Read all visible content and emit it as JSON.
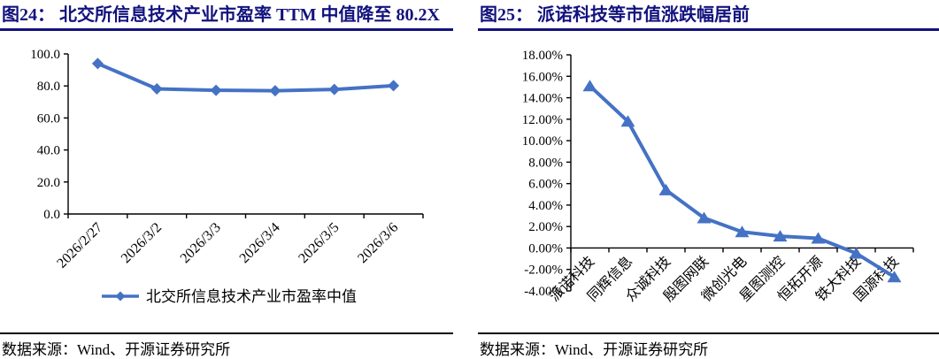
{
  "panels": [
    {
      "title": "图24： 北交所信息技术产业市盈率 TTM 中值降至 80.2X",
      "source": "数据来源：Wind、开源证券研究所"
    },
    {
      "title": "图25： 派诺科技等市值涨跌幅居前",
      "source": "数据来源：Wind、开源证券研究所"
    }
  ],
  "colors": {
    "series_blue": "#4472C4",
    "title_navy": "#12127e",
    "axis_black": "#000000"
  },
  "chart_data": [
    {
      "type": "line",
      "title": "北交所信息技术产业市盈率 TTM 中值降至 80.2X",
      "xlabel": "",
      "ylabel": "",
      "categories": [
        "2026/2/27",
        "2026/3/2",
        "2026/3/3",
        "2026/3/4",
        "2026/3/5",
        "2026/3/6"
      ],
      "series": [
        {
          "name": "北交所信息技术产业市盈率中值",
          "values": [
            94.0,
            78.2,
            77.3,
            77.0,
            77.8,
            80.2
          ]
        }
      ],
      "ylim": [
        0,
        100
      ],
      "ytick_step": 20,
      "ytick_format": "fixed1",
      "marker": "diamond",
      "line_color": "#4472C4",
      "grid": false,
      "legend_position": "bottom"
    },
    {
      "type": "line",
      "title": "派诺科技等市值涨跌幅居前",
      "xlabel": "",
      "ylabel": "",
      "categories": [
        "派诺科技",
        "同辉信息",
        "众诚科技",
        "殷图网联",
        "微创光电",
        "星图测控",
        "恒拓开源",
        "铁大科技",
        "国源科技"
      ],
      "series": [
        {
          "name": "",
          "values": [
            15.1,
            11.8,
            5.4,
            2.8,
            1.5,
            1.1,
            0.9,
            -0.5,
            -2.7
          ]
        }
      ],
      "ylim": [
        -4,
        18
      ],
      "ytick_step": 2,
      "ytick_format": "percent2",
      "marker": "triangle",
      "line_color": "#4472C4",
      "grid": false,
      "legend_position": "none"
    }
  ]
}
